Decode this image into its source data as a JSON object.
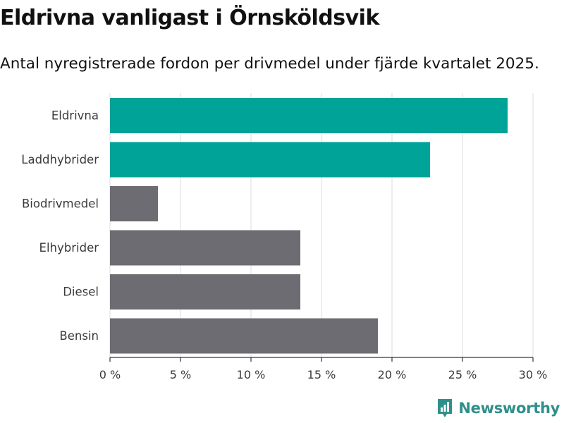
{
  "header": {
    "title": "Eldrivna vanligast i Örnsköldsvik",
    "subtitle": "Antal nyregistrerade fordon per drivmedel under fjärde kvartalet 2025."
  },
  "chart_data": {
    "type": "bar",
    "orientation": "horizontal",
    "title": "Eldrivna vanligast i Örnsköldsvik",
    "subtitle": "Antal nyregistrerade fordon per drivmedel under fjärde kvartalet 2025.",
    "categories": [
      "Eldrivna",
      "Laddhybrider",
      "Biodrivmedel",
      "Elhybrider",
      "Diesel",
      "Bensin"
    ],
    "values": [
      28.2,
      22.7,
      3.4,
      13.5,
      13.5,
      19.0
    ],
    "highlight": [
      true,
      true,
      false,
      false,
      false,
      false
    ],
    "colors": {
      "highlight": "#00a398",
      "default": "#6d6c72",
      "grid": "#dddddd",
      "axis": "#333333"
    },
    "xlim": [
      0,
      30
    ],
    "xticks": [
      0,
      5,
      10,
      15,
      20,
      25,
      30
    ],
    "xtick_labels": [
      "0 %",
      "5 %",
      "10 %",
      "15 %",
      "20 %",
      "25 %",
      "30 %"
    ],
    "xlabel": "",
    "ylabel": "",
    "unit": "%",
    "grid": true,
    "legend": "none"
  },
  "branding": {
    "name": "Newsworthy",
    "icon": "newsworthy-logo-icon",
    "color": "#2f8f8a"
  }
}
